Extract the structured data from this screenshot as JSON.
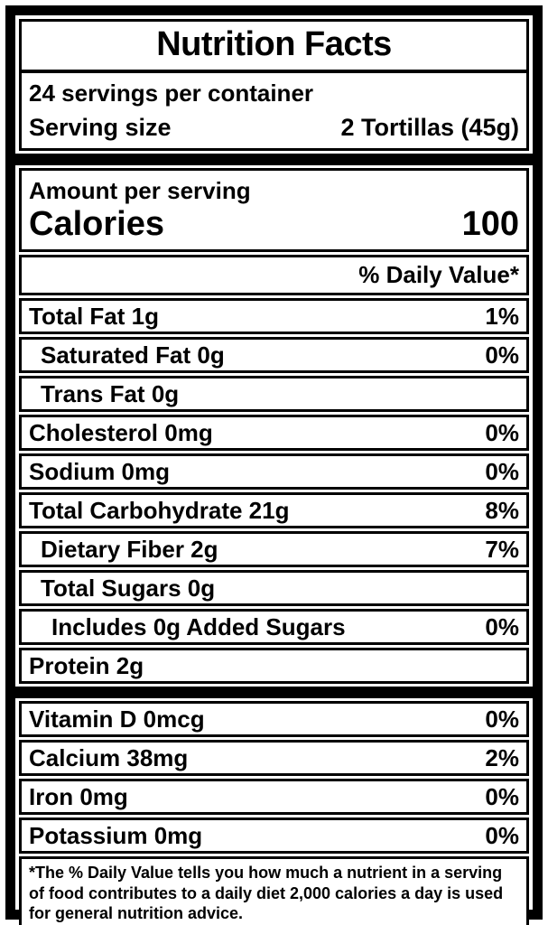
{
  "label": {
    "title": "Nutrition Facts",
    "servings_per_container": "24 servings per container",
    "serving_size_label": "Serving size",
    "serving_size_value": "2 Tortillas (45g)",
    "amount_per_serving": "Amount per serving",
    "calories_label": "Calories",
    "calories_value": "100",
    "daily_value_header": "% Daily Value*",
    "nutrients": [
      {
        "name": "Total Fat 1g",
        "dv": "1%"
      },
      {
        "name": "Saturated Fat 0g",
        "dv": "0%"
      },
      {
        "name": "Trans Fat 0g",
        "dv": ""
      },
      {
        "name": "Cholesterol 0mg",
        "dv": "0%"
      },
      {
        "name": "Sodium 0mg",
        "dv": "0%"
      },
      {
        "name": "Total Carbohydrate 21g",
        "dv": "8%"
      },
      {
        "name": "Dietary Fiber 2g",
        "dv": "7%"
      },
      {
        "name": "Total Sugars 0g",
        "dv": ""
      },
      {
        "name": "Includes 0g Added Sugars",
        "dv": "0%"
      },
      {
        "name": "Protein 2g",
        "dv": ""
      }
    ],
    "vitamins": [
      {
        "name": "Vitamin D 0mcg",
        "dv": "0%"
      },
      {
        "name": "Calcium 38mg",
        "dv": "2%"
      },
      {
        "name": "Iron 0mg",
        "dv": "0%"
      },
      {
        "name": "Potassium 0mg",
        "dv": "0%"
      }
    ],
    "footnote": "*The % Daily Value tells you how much a nutrient in a serving of food contributes to a daily diet 2,000 calories a day is used for general nutrition advice.",
    "colors": {
      "ink": "#000000",
      "paper": "#ffffff"
    }
  }
}
